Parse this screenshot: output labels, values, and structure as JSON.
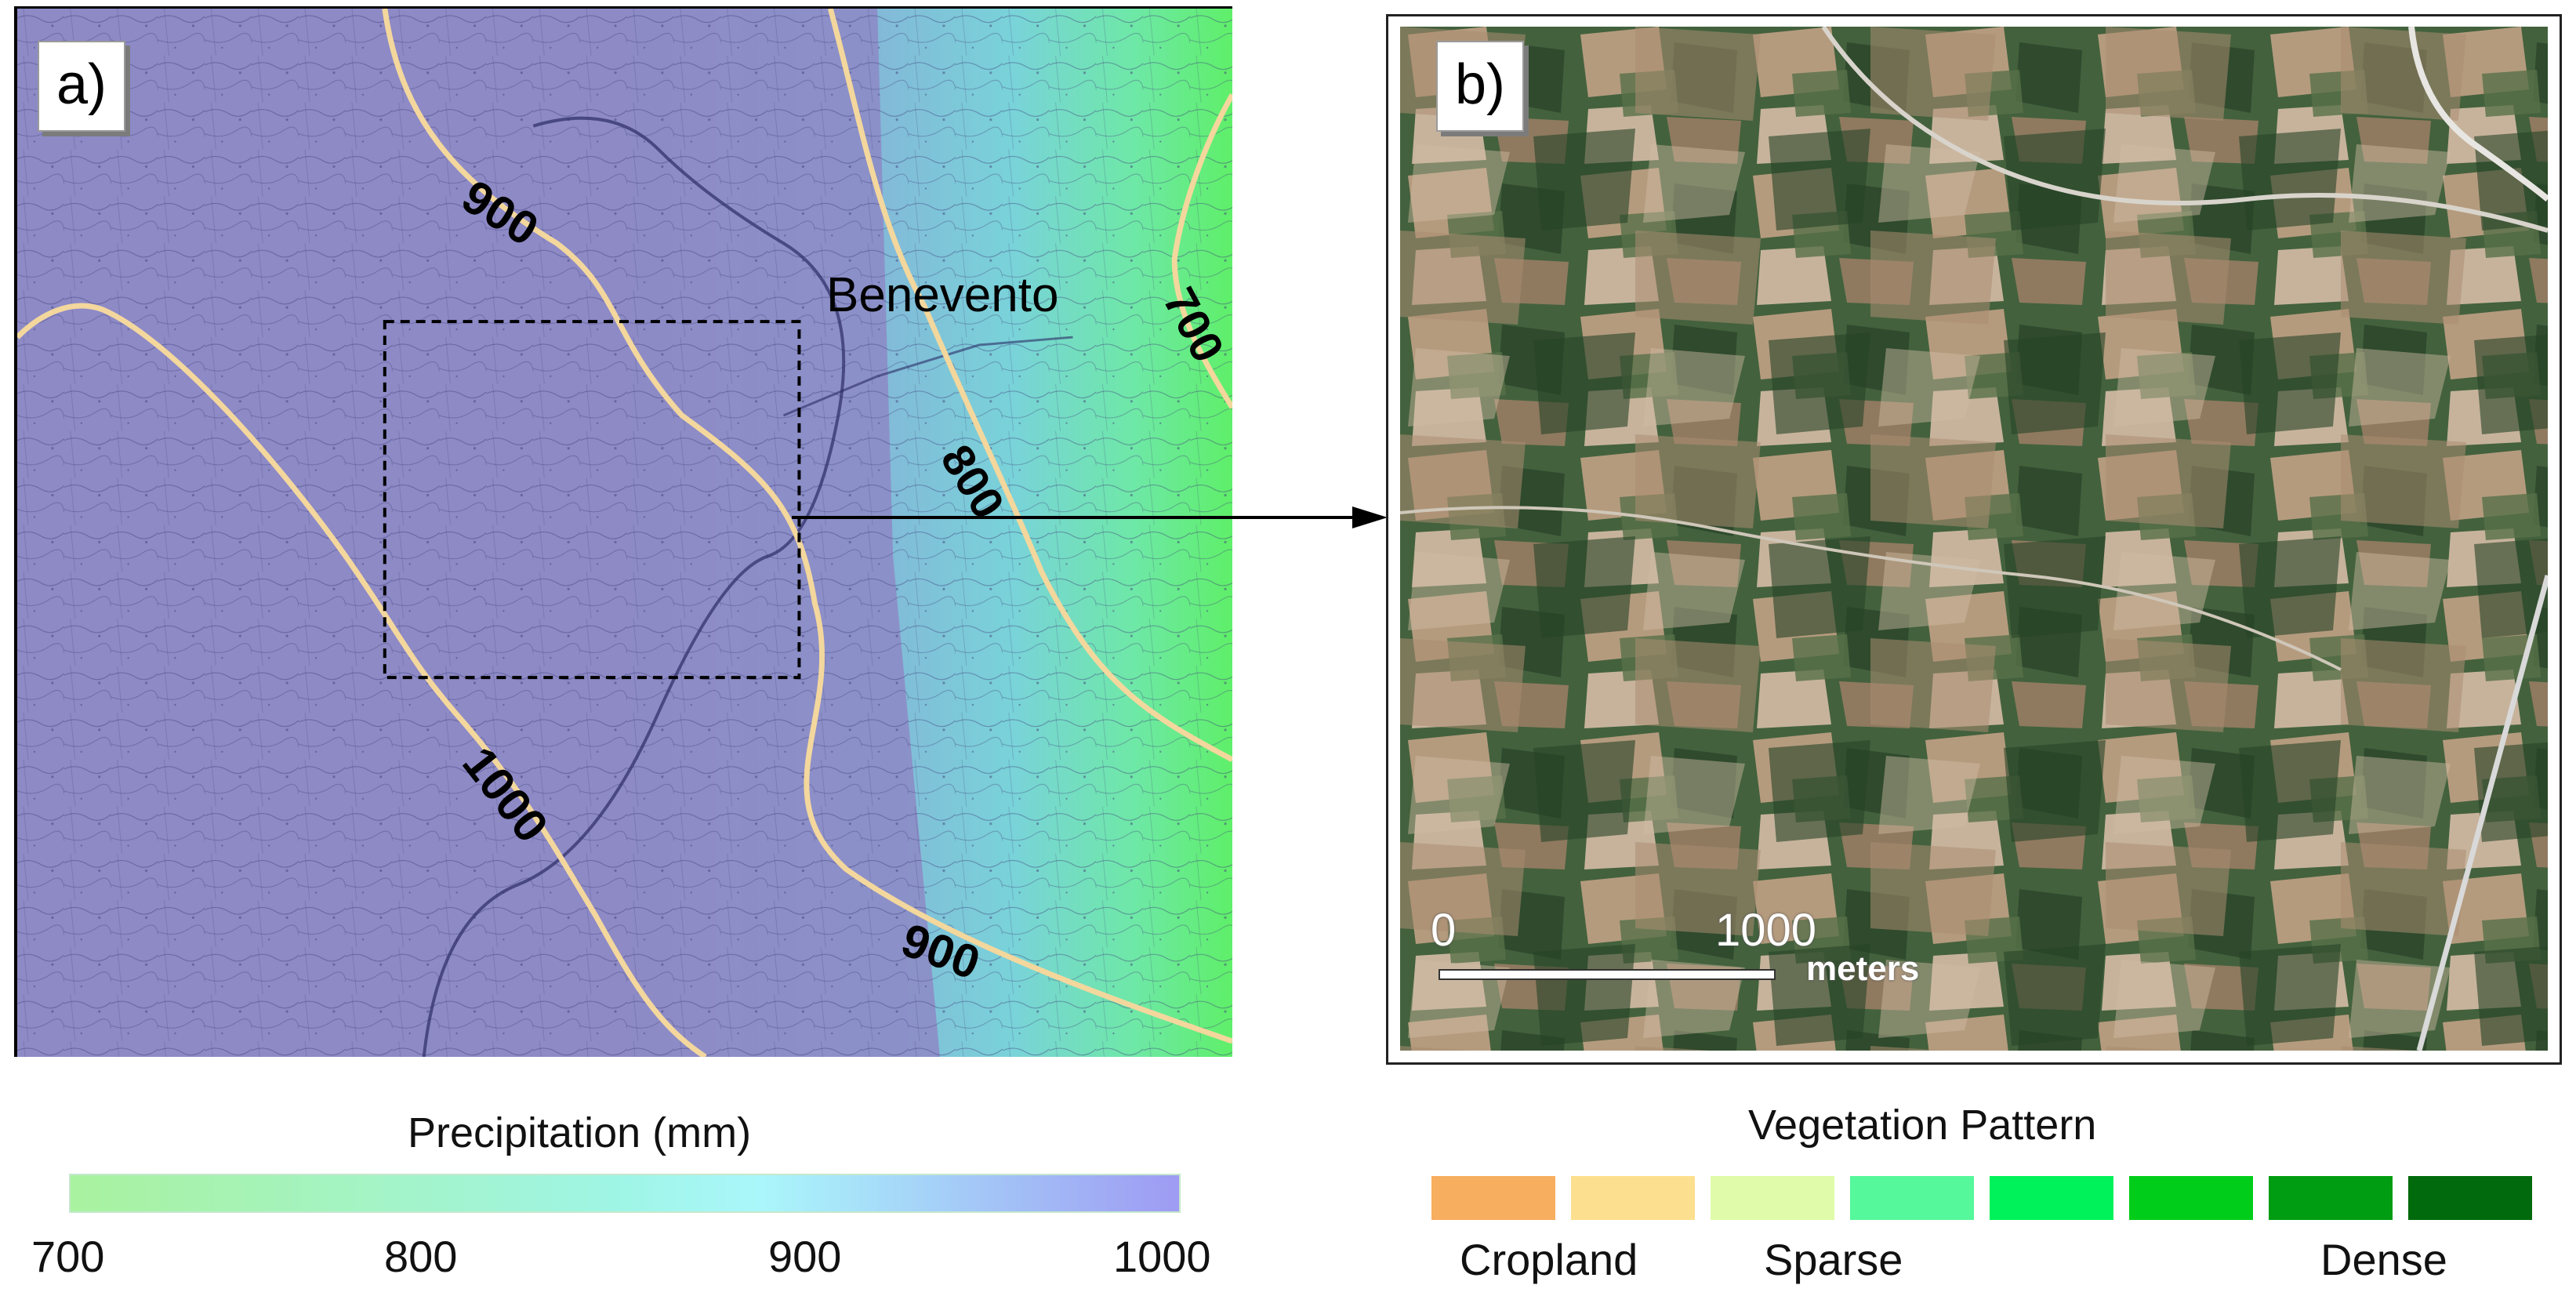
{
  "panel_a": {
    "label": "a)",
    "city_label": "Benevento",
    "isohyets": [
      {
        "label": "900"
      },
      {
        "label": "700"
      },
      {
        "label": "800"
      },
      {
        "label": "1000"
      },
      {
        "label": "900"
      }
    ],
    "colors": {
      "isohyet_line": "#f3d79d",
      "base_tint": "#8d8ac5"
    }
  },
  "panel_b": {
    "label": "b)",
    "scale_bar": {
      "start": "0",
      "end": "1000",
      "unit": "meters"
    }
  },
  "precipitation_legend": {
    "title": "Precipitation (mm)",
    "ticks": [
      "700",
      "800",
      "900",
      "1000"
    ],
    "gradient_colors": [
      "#a9f29f",
      "#9ff5e6",
      "#aaf7fb",
      "#9e9bf3"
    ]
  },
  "vegetation_legend": {
    "title": "Vegetation Pattern",
    "swatches": [
      "#f7ae5e",
      "#fde08f",
      "#e0fcaa",
      "#55f89b",
      "#00f25b",
      "#00cd1a",
      "#009d12",
      "#006a0c"
    ],
    "labels": [
      "Cropland",
      "Sparse",
      "Dense"
    ]
  }
}
